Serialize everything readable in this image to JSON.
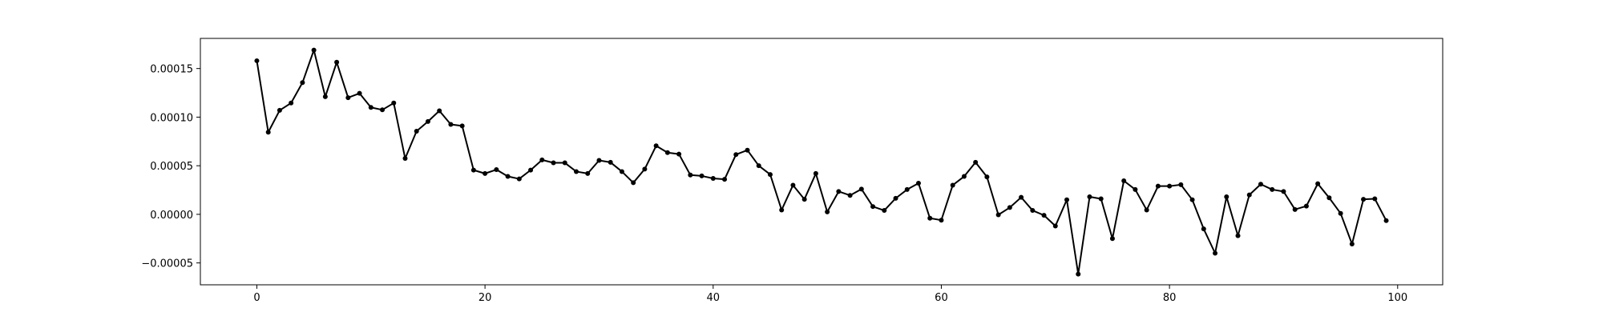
{
  "chart_data": {
    "type": "line",
    "title": "",
    "xlabel": "",
    "ylabel": "",
    "xlim": [
      -4.95,
      103.95
    ],
    "ylim": [
      -7.25e-05,
      0.000181
    ],
    "grid": false,
    "legend": "none",
    "x_ticks": [
      0,
      20,
      40,
      60,
      80,
      100
    ],
    "x_tick_labels": [
      "0",
      "20",
      "40",
      "60",
      "80",
      "100"
    ],
    "y_ticks": [
      -5e-05,
      0,
      5e-05,
      0.0001,
      0.00015
    ],
    "y_tick_labels": [
      "−0.00005",
      "0.00000",
      "0.00005",
      "0.00010",
      "0.00015"
    ],
    "series": [
      {
        "color": "#000000",
        "marker": "dot",
        "x": [
          0,
          1,
          2,
          3,
          4,
          5,
          6,
          7,
          8,
          9,
          10,
          11,
          12,
          13,
          14,
          15,
          16,
          17,
          18,
          19,
          20,
          21,
          22,
          23,
          24,
          25,
          26,
          27,
          28,
          29,
          30,
          31,
          32,
          33,
          34,
          35,
          36,
          37,
          38,
          39,
          40,
          41,
          42,
          43,
          44,
          45,
          46,
          47,
          48,
          49,
          50,
          51,
          52,
          53,
          54,
          55,
          56,
          57,
          58,
          59,
          60,
          61,
          62,
          63,
          64,
          65,
          66,
          67,
          68,
          69,
          70,
          71,
          72,
          73,
          74,
          75,
          76,
          77,
          78,
          79,
          80,
          81,
          82,
          83,
          84,
          85,
          86,
          87,
          88,
          89,
          90,
          91,
          92,
          93,
          94,
          95,
          96,
          97,
          98,
          99
        ],
        "values": [
          0.000158,
          8.45e-05,
          0.000107,
          0.0001145,
          0.0001355,
          0.000169,
          0.000121,
          0.0001565,
          0.00012,
          0.0001245,
          0.00011,
          0.0001075,
          0.0001145,
          5.75e-05,
          8.55e-05,
          9.55e-05,
          0.0001065,
          9.25e-05,
          9.1e-05,
          4.55e-05,
          4.2e-05,
          4.6e-05,
          3.9e-05,
          3.65e-05,
          4.55e-05,
          5.6e-05,
          5.3e-05,
          5.3e-05,
          4.4e-05,
          4.2e-05,
          5.55e-05,
          5.35e-05,
          4.4e-05,
          3.25e-05,
          4.65e-05,
          7.05e-05,
          6.35e-05,
          6.2e-05,
          4.05e-05,
          3.95e-05,
          3.7e-05,
          3.6e-05,
          6.15e-05,
          6.6e-05,
          5e-05,
          4.1e-05,
          4.5e-06,
          3e-05,
          1.55e-05,
          4.2e-05,
          2.5e-06,
          2.35e-05,
          1.95e-05,
          2.6e-05,
          8e-06,
          4e-06,
          1.65e-05,
          2.55e-05,
          3.2e-05,
          -4e-06,
          -6e-06,
          3e-05,
          3.9e-05,
          5.35e-05,
          3.85e-05,
          -5e-07,
          7e-06,
          1.75e-05,
          4e-06,
          -1e-06,
          -1.2e-05,
          1.5e-05,
          -6.15e-05,
          1.8e-05,
          1.6e-05,
          -2.5e-05,
          3.45e-05,
          2.55e-05,
          4.5e-06,
          2.9e-05,
          2.9e-05,
          3.05e-05,
          1.5e-05,
          -1.5e-05,
          -4e-05,
          1.8e-05,
          -2.2e-05,
          2e-05,
          3.1e-05,
          2.55e-05,
          2.35e-05,
          5e-06,
          8.5e-06,
          3.15e-05,
          1.7e-05,
          1e-06,
          -3.05e-05,
          1.55e-05,
          1.6e-05,
          -6.5e-06
        ]
      }
    ]
  }
}
